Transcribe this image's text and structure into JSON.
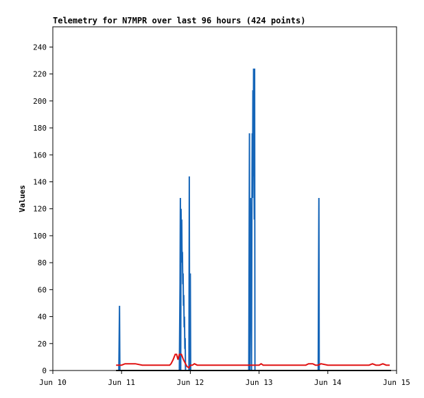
{
  "chart_data": {
    "type": "line",
    "title": "Telemetry for N7MPR over last 96 hours (424 points)",
    "xlabel": "",
    "ylabel": "Values",
    "x_tick_labels": [
      "Jun 10",
      "Jun 11",
      "Jun 12",
      "Jun 13",
      "Jun 14",
      "Jun 15"
    ],
    "xlim": [
      0,
      5
    ],
    "ylim": [
      0,
      255
    ],
    "y_ticks": [
      0,
      20,
      40,
      60,
      80,
      100,
      120,
      140,
      160,
      180,
      200,
      220,
      240
    ],
    "grid": false,
    "colors": {
      "blue": "#1565b8",
      "red": "#e01010",
      "black": "#000000"
    },
    "series": [
      {
        "color": "#1565b8",
        "x": [
          0.96,
          0.97,
          0.975,
          0.98,
          1.84,
          1.85,
          1.855,
          1.86,
          1.865,
          1.87,
          1.875,
          1.88,
          1.885,
          1.89,
          1.895,
          1.9,
          1.905,
          1.91,
          1.915,
          1.92,
          1.925,
          1.93,
          1.98,
          1.985,
          1.99,
          1.995,
          2.0,
          2.005,
          2.01,
          2.85,
          2.855,
          2.86,
          2.865,
          2.87,
          2.875,
          2.88,
          2.885,
          2.89,
          2.895,
          2.9,
          2.905,
          2.91,
          2.915,
          2.92,
          2.925,
          2.93,
          2.935,
          2.94,
          2.945,
          2.95,
          2.955,
          2.96,
          3.86,
          3.865,
          3.87,
          3.875,
          3.88,
          3.885
        ],
        "values": [
          0,
          48,
          0,
          0,
          0,
          64,
          128,
          0,
          120,
          96,
          112,
          80,
          88,
          64,
          72,
          48,
          56,
          32,
          40,
          16,
          24,
          0,
          0,
          144,
          0,
          0,
          72,
          0,
          0,
          0,
          88,
          176,
          0,
          48,
          128,
          64,
          80,
          0,
          112,
          176,
          128,
          208,
          144,
          224,
          160,
          112,
          224,
          0,
          0,
          0,
          0,
          0,
          0,
          64,
          128,
          0,
          0,
          0
        ]
      },
      {
        "color": "#e01010",
        "x": [
          0.92,
          1.0,
          1.05,
          1.1,
          1.2,
          1.3,
          1.5,
          1.6,
          1.7,
          1.72,
          1.75,
          1.78,
          1.8,
          1.82,
          1.84,
          1.87,
          1.9,
          1.93,
          1.95,
          1.98,
          2.0,
          2.03,
          2.06,
          2.1,
          2.2,
          2.4,
          2.6,
          2.8,
          3.0,
          3.03,
          3.06,
          3.2,
          3.4,
          3.6,
          3.68,
          3.72,
          3.78,
          3.82,
          3.86,
          3.9,
          4.0,
          4.2,
          4.4,
          4.6,
          4.65,
          4.7,
          4.75,
          4.8,
          4.85,
          4.9
        ],
        "values": [
          4,
          4,
          5,
          5,
          5,
          4,
          4,
          4,
          4,
          5,
          8,
          12,
          12,
          8,
          12,
          12,
          8,
          5,
          3,
          2,
          4,
          4,
          5,
          4,
          4,
          4,
          4,
          4,
          4,
          5,
          4,
          4,
          4,
          4,
          4,
          5,
          5,
          4,
          4,
          5,
          4,
          4,
          4,
          4,
          5,
          4,
          4,
          5,
          4,
          4
        ]
      },
      {
        "color": "#000000",
        "x": [
          0.92,
          4.92
        ],
        "values": [
          0,
          0
        ]
      }
    ]
  }
}
